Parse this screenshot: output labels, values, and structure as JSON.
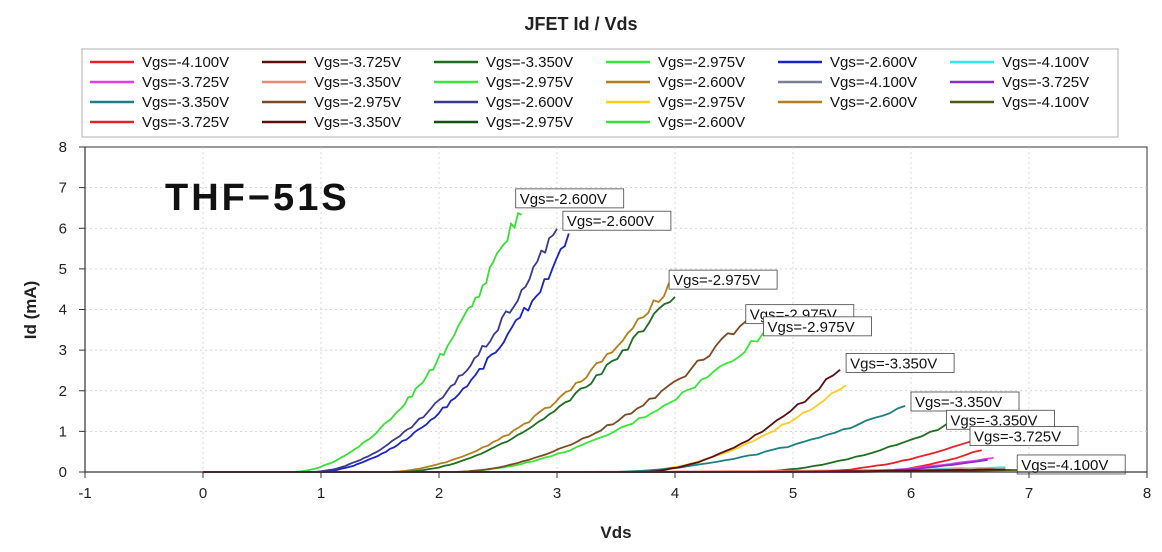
{
  "chart_data": {
    "type": "line",
    "title": "JFET Id / Vds",
    "xlabel": "Vds",
    "ylabel": "Id (mA)",
    "xlim": [
      -1,
      8
    ],
    "ylim": [
      0,
      8
    ],
    "xticks": [
      -1,
      0,
      1,
      2,
      3,
      4,
      5,
      6,
      7,
      8
    ],
    "yticks": [
      0,
      1,
      2,
      3,
      4,
      5,
      6,
      7,
      8
    ],
    "grid": true,
    "legend_position": "top",
    "watermark_text": "THF−51S",
    "series": [
      {
        "name": "Vgs=-4.100V",
        "color": "#e8202a",
        "onset": 5.6,
        "vend": 6.6,
        "iend": 0.55
      },
      {
        "name": "Vgs=-3.725V",
        "color": "#5a1010",
        "onset": 3.0,
        "vend": 6.85,
        "iend": 0.05
      },
      {
        "name": "Vgs=-3.350V",
        "color": "#1f6e22",
        "onset": 4.6,
        "vend": 6.3,
        "iend": 1.15
      },
      {
        "name": "Vgs=-2.975V",
        "color": "#39e639",
        "onset": 2.1,
        "vend": 4.75,
        "iend": 3.4
      },
      {
        "name": "Vgs=-2.600V",
        "color": "#1a23c8",
        "onset": 0.95,
        "vend": 3.1,
        "iend": 5.7
      },
      {
        "name": "Vgs=-4.100V",
        "color": "#36e6ee",
        "onset": 4.0,
        "vend": 6.8,
        "iend": 0.12
      },
      {
        "name": "Vgs=-3.725V",
        "color": "#e63de6",
        "onset": 5.3,
        "vend": 6.7,
        "iend": 0.35
      },
      {
        "name": "Vgs=-3.350V",
        "color": "#e8877a",
        "onset": 2.5,
        "vend": 6.7,
        "iend": 0.08
      },
      {
        "name": "Vgs=-2.975V",
        "color": "#39e639",
        "onset": 2.3,
        "vend": 4.6,
        "iend": 0.0
      },
      {
        "name": "Vgs=-2.600V",
        "color": "#ffcc22",
        "onset": 3.6,
        "vend": 5.45,
        "iend": 2.2
      },
      {
        "name": "Vgs=-3.350V",
        "color": "#1e7f86",
        "onset": 3.4,
        "vend": 5.95,
        "iend": 1.6
      },
      {
        "name": "Vgs=-2.975V",
        "color": "#7a4b25",
        "onset": 2.1,
        "vend": 4.6,
        "iend": 3.75
      },
      {
        "name": "Vgs=-2.600V",
        "color": "#3c3a8e",
        "onset": 0.9,
        "vend": 3.0,
        "iend": 6.0
      },
      {
        "name": "Vgs=-4.100V",
        "color": "#4e5a14",
        "onset": 4.6,
        "vend": 6.9,
        "iend": 0.05
      },
      {
        "name": "Vgs=-2.975V",
        "color": "#b37f1c",
        "onset": 1.55,
        "vend": 3.95,
        "iend": 4.6
      },
      {
        "name": "Vgs=-2.600V",
        "color": "#145214",
        "onset": 1.0,
        "vend": 3.0,
        "iend": 0.0
      },
      {
        "name": "Vgs=-2.600V",
        "color": "#37e037",
        "onset": 0.75,
        "vend": 2.7,
        "iend": 6.5
      },
      {
        "name": "Vgs=-2.600V",
        "color": "#7a7f95",
        "onset": 0.9,
        "vend": 3.1,
        "iend": 0.0
      },
      {
        "name": "Vgs=-3.725V",
        "color": "#e8202a",
        "onset": 5.1,
        "vend": 6.5,
        "iend": 0.75
      },
      {
        "name": "Vgs=-3.350V",
        "color": "#5a1010",
        "onset": 3.7,
        "vend": 5.4,
        "iend": 2.55
      },
      {
        "name": "Vgs=-2.975V",
        "color": "#1f6e22",
        "onset": 1.65,
        "vend": 4.0,
        "iend": 4.4
      },
      {
        "name": "Vgs=-3.725V",
        "color": "#8a2ad0",
        "onset": 5.4,
        "vend": 6.65,
        "iend": 0.3
      },
      {
        "name": "Vgs=-3.350V",
        "color": "#5a1010",
        "onset": 4.2,
        "vend": 6.8,
        "iend": 0.07
      }
    ],
    "legend": [
      {
        "label": "Vgs=-4.100V",
        "color": "#e8202a"
      },
      {
        "label": "Vgs=-3.725V",
        "color": "#5a1010"
      },
      {
        "label": "Vgs=-3.350V",
        "color": "#1f6e22"
      },
      {
        "label": "Vgs=-2.975V",
        "color": "#39e639"
      },
      {
        "label": "Vgs=-2.600V",
        "color": "#1a23c8"
      },
      {
        "label": "Vgs=-4.100V",
        "color": "#36e6ee"
      },
      {
        "label": "Vgs=-3.725V",
        "color": "#e63de6"
      },
      {
        "label": "Vgs=-3.350V",
        "color": "#e8877a"
      },
      {
        "label": "Vgs=-2.975V",
        "color": "#39e639"
      },
      {
        "label": "Vgs=-2.600V",
        "color": "#b37f1c"
      },
      {
        "label": "Vgs=-4.100V",
        "color": "#7a7f95"
      },
      {
        "label": "Vgs=-3.725V",
        "color": "#8a2ad0"
      },
      {
        "label": "Vgs=-3.350V",
        "color": "#1e7f86"
      },
      {
        "label": "Vgs=-2.975V",
        "color": "#7a4b25"
      },
      {
        "label": "Vgs=-2.600V",
        "color": "#3c3a8e"
      },
      {
        "label": "Vgs=-2.975V",
        "color": "#ffcc22"
      },
      {
        "label": "Vgs=-2.600V",
        "color": "#b37f1c"
      },
      {
        "label": "Vgs=-4.100V",
        "color": "#4e5a14"
      },
      {
        "label": "Vgs=-3.725V",
        "color": "#e8202a"
      },
      {
        "label": "Vgs=-3.350V",
        "color": "#5a1010"
      },
      {
        "label": "Vgs=-2.975V",
        "color": "#145214"
      },
      {
        "label": "Vgs=-2.600V",
        "color": "#37e037"
      }
    ],
    "annotations": [
      {
        "text": "Vgs=-2.600V",
        "x": 2.65,
        "y": 6.6
      },
      {
        "text": "Vgs=-2.600V",
        "x": 3.05,
        "y": 6.05
      },
      {
        "text": "Vgs=-2.975V",
        "x": 3.95,
        "y": 4.6
      },
      {
        "text": "Vgs=-2.975V",
        "x": 4.6,
        "y": 3.75
      },
      {
        "text": "Vgs=-2.975V",
        "x": 4.75,
        "y": 3.45
      },
      {
        "text": "Vgs=-3.350V",
        "x": 5.45,
        "y": 2.55
      },
      {
        "text": "Vgs=-3.350V",
        "x": 6.0,
        "y": 1.6
      },
      {
        "text": "Vgs=-3.350V",
        "x": 6.3,
        "y": 1.15
      },
      {
        "text": "Vgs=-3.725V",
        "x": 6.5,
        "y": 0.75
      },
      {
        "text": "Vgs=-4.100V",
        "x": 6.9,
        "y": 0.05
      }
    ]
  }
}
